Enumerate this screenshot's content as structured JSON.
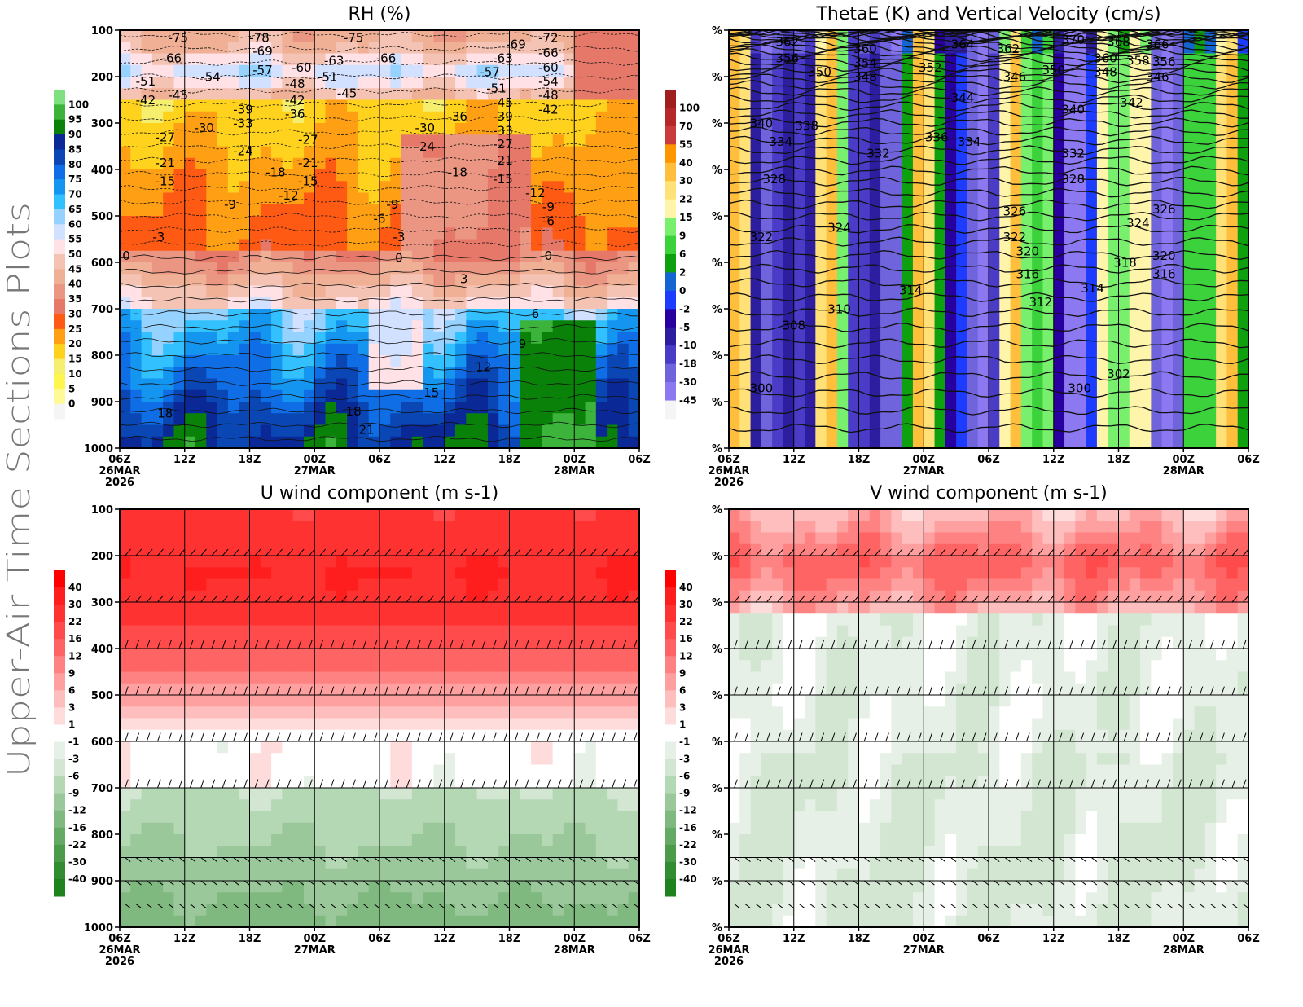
{
  "page_title": "Upper-Air Time Sections Plots",
  "chart_data": [
    {
      "id": "rh",
      "type": "heatmap",
      "title": "RH (%)",
      "overlay": "temperature contours (°C)",
      "xlabel": "",
      "ylabel": "",
      "x_ticks": [
        "06Z",
        "12Z",
        "18Z",
        "00Z",
        "06Z",
        "12Z",
        "18Z",
        "00Z",
        "06Z"
      ],
      "x_date_labels": [
        {
          "tick": 0,
          "lines": [
            "26MAR",
            "2026"
          ]
        },
        {
          "tick": 3,
          "lines": [
            "27MAR"
          ]
        },
        {
          "tick": 7,
          "lines": [
            "28MAR"
          ]
        }
      ],
      "y_ticks": [
        "100",
        "200",
        "300",
        "400",
        "500",
        "600",
        "700",
        "800",
        "900",
        "1000"
      ],
      "ylim": [
        1000,
        100
      ],
      "colorbar": {
        "labels": [
          "100",
          "95",
          "90",
          "85",
          "80",
          "75",
          "70",
          "65",
          "60",
          "55",
          "50",
          "45",
          "40",
          "35",
          "30",
          "25",
          "20",
          "15",
          "10",
          "5",
          "0"
        ],
        "colors": [
          "#7ee07e",
          "#3cb43c",
          "#0a820a",
          "#0a2896",
          "#0a46b4",
          "#0f6ee6",
          "#1496f0",
          "#32c0ff",
          "#96d2ff",
          "#d2e1ff",
          "#ffe1e6",
          "#f5c3b4",
          "#f0b096",
          "#eb9682",
          "#e6786a",
          "#ff5a14",
          "#ffa014",
          "#ffd21e",
          "#f5ee6e",
          "#fff550",
          "#fffa96",
          "#f5f5f5"
        ]
      },
      "contour_labels": [
        {
          "t": 0.9,
          "p": 115,
          "v": "-75"
        },
        {
          "t": 0.8,
          "p": 160,
          "v": "-66"
        },
        {
          "t": 2.15,
          "p": 107,
          "v": "-78"
        },
        {
          "t": 2.2,
          "p": 145,
          "v": "-69"
        },
        {
          "t": 2.2,
          "p": 185,
          "v": "-57"
        },
        {
          "t": 3.6,
          "p": 115,
          "v": "-75"
        },
        {
          "t": 3.3,
          "p": 165,
          "v": "-63"
        },
        {
          "t": 4.1,
          "p": 160,
          "v": "-66"
        },
        {
          "t": 2.8,
          "p": 180,
          "v": "-60"
        },
        {
          "t": 0.4,
          "p": 210,
          "v": "-51"
        },
        {
          "t": 1.4,
          "p": 200,
          "v": "-54"
        },
        {
          "t": 3.2,
          "p": 200,
          "v": "-51"
        },
        {
          "t": 2.7,
          "p": 215,
          "v": "-48"
        },
        {
          "t": 0.4,
          "p": 250,
          "v": "-42"
        },
        {
          "t": 0.9,
          "p": 240,
          "v": "-45"
        },
        {
          "t": 3.5,
          "p": 235,
          "v": "-45"
        },
        {
          "t": 2.7,
          "p": 250,
          "v": "-42"
        },
        {
          "t": 2.7,
          "p": 275,
          "v": "-36"
        },
        {
          "t": 1.9,
          "p": 270,
          "v": "-39"
        },
        {
          "t": 1.9,
          "p": 290,
          "v": "-33"
        },
        {
          "t": 1.3,
          "p": 310,
          "v": "-30"
        },
        {
          "t": 0.7,
          "p": 330,
          "v": "-27"
        },
        {
          "t": 2.9,
          "p": 335,
          "v": "-27"
        },
        {
          "t": 1.9,
          "p": 360,
          "v": "-24"
        },
        {
          "t": 0.7,
          "p": 385,
          "v": "-21"
        },
        {
          "t": 2.9,
          "p": 385,
          "v": "-21"
        },
        {
          "t": 2.4,
          "p": 405,
          "v": "-18"
        },
        {
          "t": 0.7,
          "p": 425,
          "v": "-15"
        },
        {
          "t": 2.9,
          "p": 425,
          "v": "-15"
        },
        {
          "t": 2.6,
          "p": 450,
          "v": "-12"
        },
        {
          "t": 1.7,
          "p": 475,
          "v": "-9"
        },
        {
          "t": 0.6,
          "p": 545,
          "v": "-3"
        },
        {
          "t": 0.1,
          "p": 585,
          "v": "0"
        },
        {
          "t": 4.7,
          "p": 310,
          "v": "-30"
        },
        {
          "t": 4.7,
          "p": 350,
          "v": "-24"
        },
        {
          "t": 5.2,
          "p": 285,
          "v": "-36"
        },
        {
          "t": 5.2,
          "p": 405,
          "v": "-18"
        },
        {
          "t": 5.8,
          "p": 225,
          "v": "-51"
        },
        {
          "t": 5.7,
          "p": 190,
          "v": "-57"
        },
        {
          "t": 5.9,
          "p": 160,
          "v": "-63"
        },
        {
          "t": 6.1,
          "p": 130,
          "v": "-69"
        },
        {
          "t": 6.6,
          "p": 115,
          "v": "-72"
        },
        {
          "t": 6.6,
          "p": 148,
          "v": "-66"
        },
        {
          "t": 6.6,
          "p": 180,
          "v": "-60"
        },
        {
          "t": 6.6,
          "p": 210,
          "v": "-54"
        },
        {
          "t": 6.6,
          "p": 240,
          "v": "-48"
        },
        {
          "t": 6.6,
          "p": 270,
          "v": "-42"
        },
        {
          "t": 5.9,
          "p": 250,
          "v": "-45"
        },
        {
          "t": 5.9,
          "p": 280,
          "v": "-39"
        },
        {
          "t": 5.9,
          "p": 305,
          "v": "-33"
        },
        {
          "t": 5.9,
          "p": 340,
          "v": "-27"
        },
        {
          "t": 5.9,
          "p": 380,
          "v": "-21"
        },
        {
          "t": 5.9,
          "p": 420,
          "v": "-15"
        },
        {
          "t": 6.4,
          "p": 450,
          "v": "-12"
        },
        {
          "t": 6.6,
          "p": 475,
          "v": "-9"
        },
        {
          "t": 6.6,
          "p": 500,
          "v": "-6"
        },
        {
          "t": 4.2,
          "p": 475,
          "v": "-9"
        },
        {
          "t": 4.0,
          "p": 500,
          "v": "-6"
        },
        {
          "t": 4.3,
          "p": 545,
          "v": "-3"
        },
        {
          "t": 4.3,
          "p": 590,
          "v": "0"
        },
        {
          "t": 6.6,
          "p": 585,
          "v": "0"
        },
        {
          "t": 5.3,
          "p": 635,
          "v": "3"
        },
        {
          "t": 6.4,
          "p": 710,
          "v": "6"
        },
        {
          "t": 6.2,
          "p": 775,
          "v": "9"
        },
        {
          "t": 5.6,
          "p": 825,
          "v": "12"
        },
        {
          "t": 4.8,
          "p": 880,
          "v": "15"
        },
        {
          "t": 0.7,
          "p": 925,
          "v": "18"
        },
        {
          "t": 3.6,
          "p": 920,
          "v": "18"
        },
        {
          "t": 3.8,
          "p": 960,
          "v": "21"
        }
      ]
    },
    {
      "id": "thetae",
      "type": "heatmap",
      "title": "ThetaE (K) and Vertical Velocity (cm/s)",
      "overlay": "theta-e contours (K)",
      "x_ticks": [
        "06Z",
        "12Z",
        "18Z",
        "00Z",
        "06Z",
        "12Z",
        "18Z",
        "00Z",
        "06Z"
      ],
      "x_date_labels": [
        {
          "tick": 0,
          "lines": [
            "26MAR",
            "2026"
          ]
        },
        {
          "tick": 3,
          "lines": [
            "27MAR"
          ]
        },
        {
          "tick": 7,
          "lines": [
            "28MAR"
          ]
        }
      ],
      "y_ticks": [
        "%",
        "%",
        "%",
        "%",
        "%",
        "%",
        "%",
        "%",
        "%",
        "%"
      ],
      "ylim": [
        1000,
        100
      ],
      "colorbar": {
        "labels": [
          "100",
          "70",
          "55",
          "40",
          "30",
          "22",
          "15",
          "9",
          "6",
          "2",
          "0",
          "-2",
          "-5",
          "-10",
          "-18",
          "-30",
          "-45"
        ],
        "colors": [
          "#a01e1e",
          "#b42828",
          "#c83c3c",
          "#ff9600",
          "#ffbe3c",
          "#ffe178",
          "#fff5aa",
          "#78f06e",
          "#3cd23c",
          "#0fa00f",
          "#1464d2",
          "#1e3cff",
          "#2800a0",
          "#2d1ea0",
          "#4b3cc8",
          "#7064dc",
          "#8c78f0",
          "#f5f5f5"
        ]
      },
      "contour_labels": [
        {
          "t": 0.9,
          "p": 125,
          "v": "362"
        },
        {
          "t": 0.9,
          "p": 160,
          "v": "356"
        },
        {
          "t": 1.4,
          "p": 190,
          "v": "350"
        },
        {
          "t": 2.1,
          "p": 140,
          "v": "360"
        },
        {
          "t": 2.1,
          "p": 165,
          "v": "354"
        },
        {
          "t": 2.1,
          "p": 190,
          "v": "348"
        },
        {
          "t": 3.1,
          "p": 180,
          "v": "352"
        },
        {
          "t": 3.6,
          "p": 130,
          "v": "364"
        },
        {
          "t": 4.3,
          "p": 140,
          "v": "362"
        },
        {
          "t": 4.4,
          "p": 200,
          "v": "346"
        },
        {
          "t": 5.0,
          "p": 185,
          "v": "350"
        },
        {
          "t": 5.3,
          "p": 120,
          "v": "370"
        },
        {
          "t": 6.0,
          "p": 125,
          "v": "368"
        },
        {
          "t": 6.6,
          "p": 130,
          "v": "366"
        },
        {
          "t": 5.8,
          "p": 160,
          "v": "360"
        },
        {
          "t": 6.3,
          "p": 165,
          "v": "358"
        },
        {
          "t": 6.6,
          "p": 168,
          "v": "356"
        },
        {
          "t": 5.8,
          "p": 190,
          "v": "348"
        },
        {
          "t": 6.6,
          "p": 195,
          "v": "346"
        },
        {
          "t": 3.6,
          "p": 245,
          "v": "344"
        },
        {
          "t": 6.2,
          "p": 255,
          "v": "342"
        },
        {
          "t": 5.3,
          "p": 270,
          "v": "340"
        },
        {
          "t": 0.5,
          "p": 300,
          "v": "340"
        },
        {
          "t": 1.2,
          "p": 305,
          "v": "338"
        },
        {
          "t": 0.8,
          "p": 340,
          "v": "334"
        },
        {
          "t": 3.2,
          "p": 330,
          "v": "336"
        },
        {
          "t": 3.7,
          "p": 340,
          "v": "334"
        },
        {
          "t": 2.3,
          "p": 365,
          "v": "332"
        },
        {
          "t": 5.3,
          "p": 365,
          "v": "332"
        },
        {
          "t": 0.7,
          "p": 420,
          "v": "328"
        },
        {
          "t": 5.3,
          "p": 420,
          "v": "328"
        },
        {
          "t": 4.4,
          "p": 490,
          "v": "326"
        },
        {
          "t": 6.7,
          "p": 485,
          "v": "326"
        },
        {
          "t": 1.7,
          "p": 525,
          "v": "324"
        },
        {
          "t": 6.3,
          "p": 515,
          "v": "324"
        },
        {
          "t": 0.5,
          "p": 545,
          "v": "322"
        },
        {
          "t": 4.4,
          "p": 545,
          "v": "322"
        },
        {
          "t": 4.6,
          "p": 570,
          "v": "320"
        },
        {
          "t": 6.7,
          "p": 585,
          "v": "320"
        },
        {
          "t": 6.1,
          "p": 600,
          "v": "318"
        },
        {
          "t": 4.6,
          "p": 625,
          "v": "316"
        },
        {
          "t": 6.7,
          "p": 625,
          "v": "316"
        },
        {
          "t": 2.8,
          "p": 660,
          "v": "314"
        },
        {
          "t": 5.6,
          "p": 655,
          "v": "314"
        },
        {
          "t": 4.8,
          "p": 685,
          "v": "312"
        },
        {
          "t": 1.7,
          "p": 700,
          "v": "310"
        },
        {
          "t": 1.0,
          "p": 735,
          "v": "308"
        },
        {
          "t": 6.0,
          "p": 840,
          "v": "302"
        },
        {
          "t": 0.5,
          "p": 870,
          "v": "300"
        },
        {
          "t": 5.4,
          "p": 870,
          "v": "300"
        }
      ]
    },
    {
      "id": "uwind",
      "type": "heatmap",
      "title": "U wind component (m s-1)",
      "overlay": "wind barbs",
      "x_ticks": [
        "06Z",
        "12Z",
        "18Z",
        "00Z",
        "06Z",
        "12Z",
        "18Z",
        "00Z",
        "06Z"
      ],
      "x_date_labels": [
        {
          "tick": 0,
          "lines": [
            "26MAR",
            "2026"
          ]
        },
        {
          "tick": 3,
          "lines": [
            "27MAR"
          ]
        },
        {
          "tick": 7,
          "lines": [
            "28MAR"
          ]
        }
      ],
      "y_ticks": [
        "100",
        "200",
        "300",
        "400",
        "500",
        "600",
        "700",
        "800",
        "900",
        "1000"
      ],
      "ylim": [
        1000,
        100
      ],
      "barb_levels": [
        100,
        200,
        300,
        400,
        500,
        600,
        700,
        850,
        900,
        950,
        1000
      ],
      "colorbar": {
        "labels": [
          "40",
          "30",
          "22",
          "16",
          "12",
          "9",
          "6",
          "3",
          "1",
          "-1",
          "-3",
          "-6",
          "-9",
          "-12",
          "-16",
          "-22",
          "-30",
          "-40"
        ],
        "colors": [
          "#ff0000",
          "#ff1e1e",
          "#ff3232",
          "#ff4b4b",
          "#ff6464",
          "#ff8282",
          "#ffa0a0",
          "#ffbebe",
          "#ffdcdc",
          "#ffffff",
          "#e6f0e6",
          "#d2e6d2",
          "#b4d7b4",
          "#9bc89b",
          "#80b980",
          "#64aa64",
          "#4b9b4b",
          "#328c32",
          "#1e821e"
        ]
      }
    },
    {
      "id": "vwind",
      "type": "heatmap",
      "title": "V wind component (m s-1)",
      "overlay": "wind barbs",
      "x_ticks": [
        "06Z",
        "12Z",
        "18Z",
        "00Z",
        "06Z",
        "12Z",
        "18Z",
        "00Z",
        "06Z"
      ],
      "x_date_labels": [
        {
          "tick": 0,
          "lines": [
            "26MAR",
            "2026"
          ]
        },
        {
          "tick": 3,
          "lines": [
            "27MAR"
          ]
        },
        {
          "tick": 7,
          "lines": [
            "28MAR"
          ]
        }
      ],
      "y_ticks": [
        "%",
        "%",
        "%",
        "%",
        "%",
        "%",
        "%",
        "%",
        "%",
        "%"
      ],
      "ylim": [
        1000,
        100
      ],
      "barb_levels": [
        100,
        200,
        300,
        400,
        500,
        600,
        700,
        850,
        900,
        950,
        1000
      ],
      "colorbar": {
        "labels": [
          "40",
          "30",
          "22",
          "16",
          "12",
          "9",
          "6",
          "3",
          "1",
          "-1",
          "-3",
          "-6",
          "-9",
          "-12",
          "-16",
          "-22",
          "-30",
          "-40"
        ],
        "colors": [
          "#ff0000",
          "#ff1e1e",
          "#ff3232",
          "#ff4b4b",
          "#ff6464",
          "#ff8282",
          "#ffa0a0",
          "#ffbebe",
          "#ffdcdc",
          "#ffffff",
          "#e6f0e6",
          "#d2e6d2",
          "#b4d7b4",
          "#9bc89b",
          "#80b980",
          "#64aa64",
          "#4b9b4b",
          "#328c32",
          "#1e821e"
        ]
      }
    }
  ]
}
